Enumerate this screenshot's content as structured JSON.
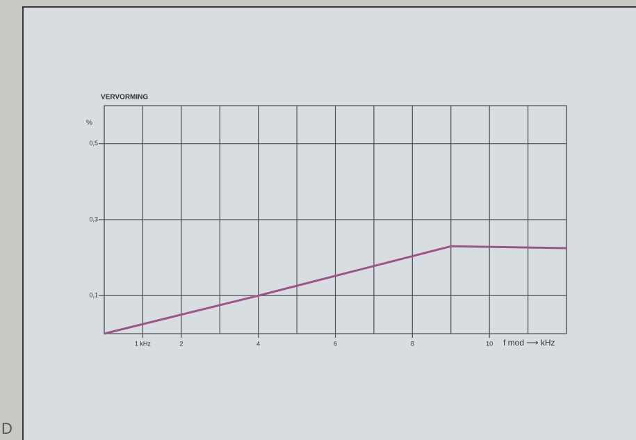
{
  "chart_data": {
    "type": "line",
    "title": "VERVORMING",
    "y_unit": "%",
    "x_label": "f mod ⟶ kHz",
    "figure_label": "D",
    "x": [
      0,
      4,
      9,
      12
    ],
    "series": [
      {
        "name": "vervorming",
        "color": "#9b5688",
        "values": [
          0,
          0.1,
          0.23,
          0.225
        ]
      }
    ],
    "xlim": [
      0,
      12
    ],
    "ylim": [
      0,
      0.6
    ],
    "xticks": [
      {
        "value": 1,
        "label": "1 kHz"
      },
      2,
      4,
      6,
      8,
      10
    ],
    "yticks": [
      {
        "value": 0.1,
        "label": "0,1"
      },
      {
        "value": 0.3,
        "label": "0,3"
      },
      {
        "value": 0.5,
        "label": "0,5"
      }
    ],
    "x_gridlines": [
      0,
      1,
      2,
      3,
      4,
      5,
      6,
      7,
      8,
      9,
      10,
      11,
      12
    ],
    "grid": true
  }
}
